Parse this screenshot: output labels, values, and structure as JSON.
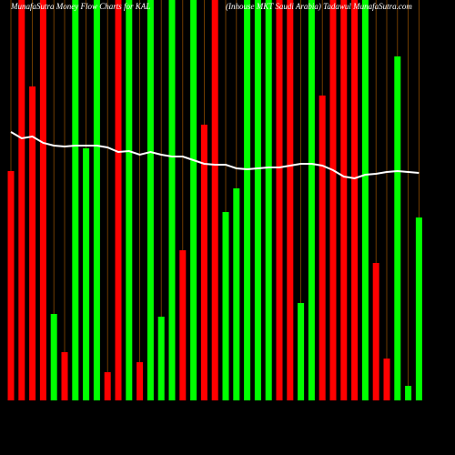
{
  "chart_data": {
    "type": "bar",
    "title": "MunafaSutra  Money Flow  Charts for KAL",
    "subtitle": "(Inhouse MKT Saudi Arabia) Tadawul MunafaSutra.com",
    "values": [
      252,
      440,
      345,
      440,
      95,
      53,
      440,
      277,
      440,
      31,
      440,
      440,
      42,
      440,
      92,
      440,
      165,
      440,
      303,
      440,
      207,
      233,
      440,
      440,
      440,
      440,
      440,
      107,
      440,
      335,
      440,
      440,
      440,
      440,
      151,
      46,
      378,
      16,
      201
    ],
    "colors": [
      "#ff0000",
      "#ff0000",
      "#ff0000",
      "#ff0000",
      "#00ff00",
      "#ff0000",
      "#00ff00",
      "#00ff00",
      "#00ff00",
      "#ff0000",
      "#ff0000",
      "#00ff00",
      "#ff0000",
      "#00ff00",
      "#00ff00",
      "#00ff00",
      "#ff0000",
      "#00ff00",
      "#ff0000",
      "#ff0000",
      "#00ff00",
      "#00ff00",
      "#00ff00",
      "#00ff00",
      "#00ff00",
      "#ff0000",
      "#ff0000",
      "#00ff00",
      "#00ff00",
      "#ff0000",
      "#ff0000",
      "#ff0000",
      "#ff0000",
      "#00ff00",
      "#ff0000",
      "#ff0000",
      "#00ff00",
      "#00ff00",
      "#00ff00"
    ],
    "line": {
      "color": "#ffffff",
      "values": [
        295,
        288,
        290,
        283,
        280,
        279,
        280,
        280,
        280,
        278,
        273,
        274,
        270,
        273,
        270,
        268,
        268,
        264,
        260,
        259,
        259,
        255,
        254,
        255,
        256,
        256,
        258,
        260,
        260,
        258,
        253,
        246,
        244,
        248,
        249,
        251,
        252,
        251,
        250
      ]
    },
    "ylim": [
      0,
      440
    ]
  }
}
